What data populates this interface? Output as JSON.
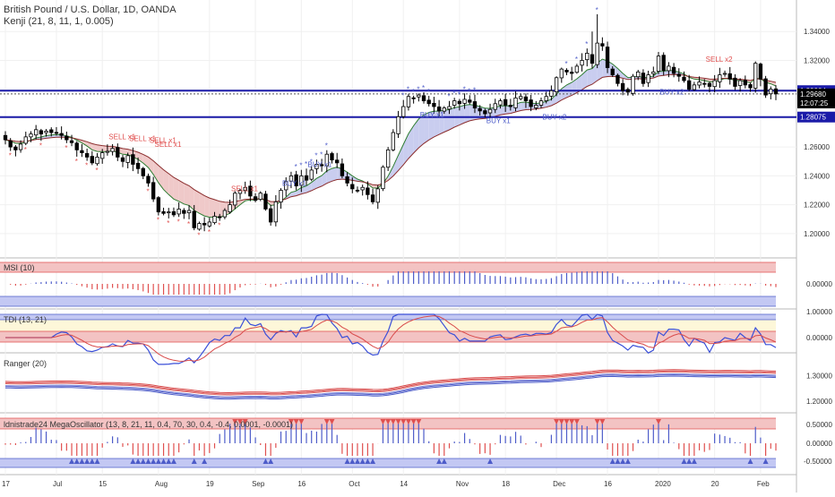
{
  "header": {
    "title": "British Pound / U.S. Dollar, 1D, OANDA",
    "indicator": "Kenji (21, 8, 11, 1, 0.005)"
  },
  "colors": {
    "up": "#ffffff",
    "down": "#000000",
    "wick": "#000000",
    "hline": "#1a1aa8",
    "sell": "#e0504f",
    "buy": "#4d5cc9",
    "cloudBull": "#c9cdef",
    "cloudBear": "#efc9c9",
    "bandRed": "#f3c3c3",
    "bandBlue": "#c3c8f3",
    "bandYellow": "#fdf7d9"
  },
  "chart_data": [
    {
      "type": "candlestick",
      "title": "British Pound / U.S. Dollar, 1D, OANDA",
      "ylim": [
        1.185,
        1.36
      ],
      "yticks": [
        "1.34000",
        "1.32000",
        "1.30000",
        "1.28000",
        "1.26000",
        "1.24000",
        "1.22000",
        "1.20000"
      ],
      "xticks": [
        "17",
        "Jul",
        "15",
        "Aug",
        "19",
        "Sep",
        "16",
        "Oct",
        "14",
        "Nov",
        "18",
        "Dec",
        "16",
        "2020",
        "20",
        "Feb"
      ],
      "xtick_index": [
        0,
        10,
        19,
        30,
        40,
        49,
        58,
        68,
        78,
        89,
        98,
        108,
        118,
        128,
        139,
        148
      ],
      "close": [
        1.265,
        1.26,
        1.258,
        1.262,
        1.267,
        1.269,
        1.272,
        1.269,
        1.271,
        1.27,
        1.27,
        1.268,
        1.265,
        1.263,
        1.258,
        1.256,
        1.253,
        1.249,
        1.253,
        1.256,
        1.257,
        1.259,
        1.253,
        1.25,
        1.254,
        1.248,
        1.245,
        1.24,
        1.235,
        1.224,
        1.215,
        1.214,
        1.215,
        1.213,
        1.217,
        1.214,
        1.216,
        1.204,
        1.207,
        1.206,
        1.208,
        1.212,
        1.211,
        1.216,
        1.22,
        1.228,
        1.23,
        1.232,
        1.226,
        1.223,
        1.228,
        1.217,
        1.208,
        1.222,
        1.23,
        1.236,
        1.24,
        1.233,
        1.24,
        1.237,
        1.244,
        1.248,
        1.247,
        1.255,
        1.251,
        1.249,
        1.24,
        1.235,
        1.231,
        1.23,
        1.232,
        1.227,
        1.222,
        1.231,
        1.246,
        1.258,
        1.27,
        1.281,
        1.288,
        1.295,
        1.294,
        1.296,
        1.292,
        1.29,
        1.288,
        1.285,
        1.287,
        1.288,
        1.292,
        1.29,
        1.293,
        1.291,
        1.287,
        1.285,
        1.283,
        1.286,
        1.29,
        1.292,
        1.289,
        1.288,
        1.294,
        1.295,
        1.292,
        1.288,
        1.289,
        1.292,
        1.295,
        1.299,
        1.308,
        1.314,
        1.312,
        1.311,
        1.316,
        1.32,
        1.325,
        1.318,
        1.332,
        1.33,
        1.315,
        1.31,
        1.304,
        1.299,
        1.298,
        1.309,
        1.312,
        1.304,
        1.31,
        1.312,
        1.323,
        1.313,
        1.316,
        1.311,
        1.309,
        1.306,
        1.3,
        1.303,
        1.305,
        1.304,
        1.302,
        1.306,
        1.31,
        1.311,
        1.307,
        1.302,
        1.306,
        1.303,
        1.301,
        1.318,
        1.307,
        1.296,
        1.3,
        1.2968
      ],
      "horizontal_lines": [
        {
          "price": 1.29904,
          "label": "1.29904"
        },
        {
          "price": 1.28075,
          "label": "1.28075"
        }
      ],
      "price_tags": [
        {
          "price": 1.2968,
          "label": "1.29680"
        },
        {
          "price": 1.2905,
          "label": "12:07:25"
        }
      ],
      "signals": [
        {
          "text": "SELL x1",
          "i": 22,
          "price": 1.2655,
          "kind": "sell"
        },
        {
          "text": "SELL x1",
          "i": 26,
          "price": 1.2642,
          "kind": "sell"
        },
        {
          "text": "SELL x1",
          "i": 30,
          "price": 1.263,
          "kind": "sell"
        },
        {
          "text": "SELL x1",
          "i": 31,
          "price": 1.26,
          "kind": "sell"
        },
        {
          "text": "SELL x1",
          "i": 46,
          "price": 1.2295,
          "kind": "sell"
        },
        {
          "text": "BUY x1",
          "i": 61,
          "price": 1.246,
          "kind": "buy"
        },
        {
          "text": "BUY x1",
          "i": 56,
          "price": 1.233,
          "kind": "buy"
        },
        {
          "text": "BUY x1",
          "i": 83,
          "price": 1.2805,
          "kind": "buy"
        },
        {
          "text": "BUY x1",
          "i": 96,
          "price": 1.2765,
          "kind": "buy"
        },
        {
          "text": "BUY x2",
          "i": 107,
          "price": 1.279,
          "kind": "buy"
        },
        {
          "text": "BUY x2",
          "i": 130,
          "price": 1.2965,
          "kind": "buy"
        },
        {
          "text": "SELL x2",
          "i": 139,
          "price": 1.319,
          "kind": "sell"
        }
      ]
    },
    {
      "type": "bar",
      "title": "MSI (10)",
      "yticks": [
        "0.00000"
      ],
      "bands": [
        {
          "from": 0.5,
          "to": 1.0,
          "color": "red"
        },
        {
          "from": -1.0,
          "to": -0.5,
          "color": "blue"
        }
      ]
    },
    {
      "type": "line",
      "title": "TDI (13, 21)",
      "yticks": [
        "1.00000",
        "0.00000"
      ]
    },
    {
      "type": "line",
      "title": "Ranger (20)",
      "yticks": [
        "1.30000",
        "1.20000"
      ]
    },
    {
      "type": "bar",
      "title": "ldnistrade24 MegaOscillator (13, 8, 21, 11, 0.4, 70, 30, 0.4, -0.4, 0.0001, -0.0001)",
      "yticks": [
        "0.50000",
        "0.00000",
        "-0.50000"
      ]
    }
  ]
}
